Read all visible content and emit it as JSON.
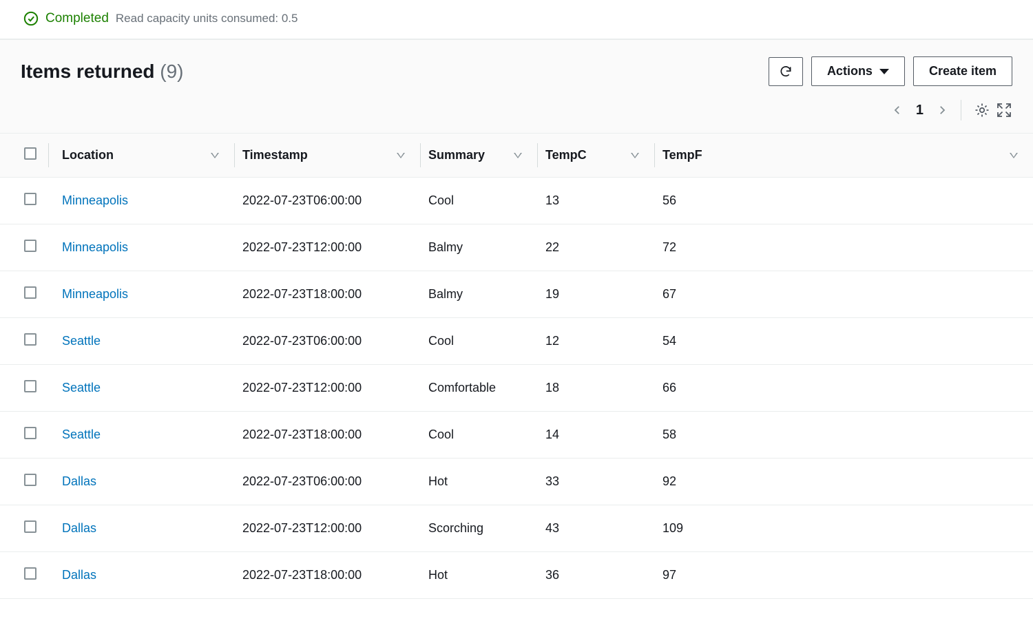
{
  "status": {
    "label": "Completed",
    "meta": "Read capacity units consumed: 0.5",
    "color": "#1d8102"
  },
  "panel": {
    "title": "Items returned",
    "count": "(9)"
  },
  "buttons": {
    "refresh_aria": "Refresh",
    "actions_label": "Actions",
    "create_label": "Create item"
  },
  "pager": {
    "page": "1"
  },
  "table": {
    "columns": [
      {
        "key": "location",
        "label": "Location"
      },
      {
        "key": "timestamp",
        "label": "Timestamp"
      },
      {
        "key": "summary",
        "label": "Summary"
      },
      {
        "key": "tempc",
        "label": "TempC"
      },
      {
        "key": "tempf",
        "label": "TempF"
      }
    ],
    "rows": [
      {
        "location": "Minneapolis",
        "timestamp": "2022-07-23T06:00:00",
        "summary": "Cool",
        "tempc": "13",
        "tempf": "56"
      },
      {
        "location": "Minneapolis",
        "timestamp": "2022-07-23T12:00:00",
        "summary": "Balmy",
        "tempc": "22",
        "tempf": "72"
      },
      {
        "location": "Minneapolis",
        "timestamp": "2022-07-23T18:00:00",
        "summary": "Balmy",
        "tempc": "19",
        "tempf": "67"
      },
      {
        "location": "Seattle",
        "timestamp": "2022-07-23T06:00:00",
        "summary": "Cool",
        "tempc": "12",
        "tempf": "54"
      },
      {
        "location": "Seattle",
        "timestamp": "2022-07-23T12:00:00",
        "summary": "Comfortable",
        "tempc": "18",
        "tempf": "66"
      },
      {
        "location": "Seattle",
        "timestamp": "2022-07-23T18:00:00",
        "summary": "Cool",
        "tempc": "14",
        "tempf": "58"
      },
      {
        "location": "Dallas",
        "timestamp": "2022-07-23T06:00:00",
        "summary": "Hot",
        "tempc": "33",
        "tempf": "92"
      },
      {
        "location": "Dallas",
        "timestamp": "2022-07-23T12:00:00",
        "summary": "Scorching",
        "tempc": "43",
        "tempf": "109"
      },
      {
        "location": "Dallas",
        "timestamp": "2022-07-23T18:00:00",
        "summary": "Hot",
        "tempc": "36",
        "tempf": "97"
      }
    ]
  },
  "colors": {
    "link": "#0073bb",
    "border": "#eaeded",
    "text": "#16191f",
    "muted": "#687078",
    "icon": "#545b64",
    "header_bg": "#fafafa"
  }
}
